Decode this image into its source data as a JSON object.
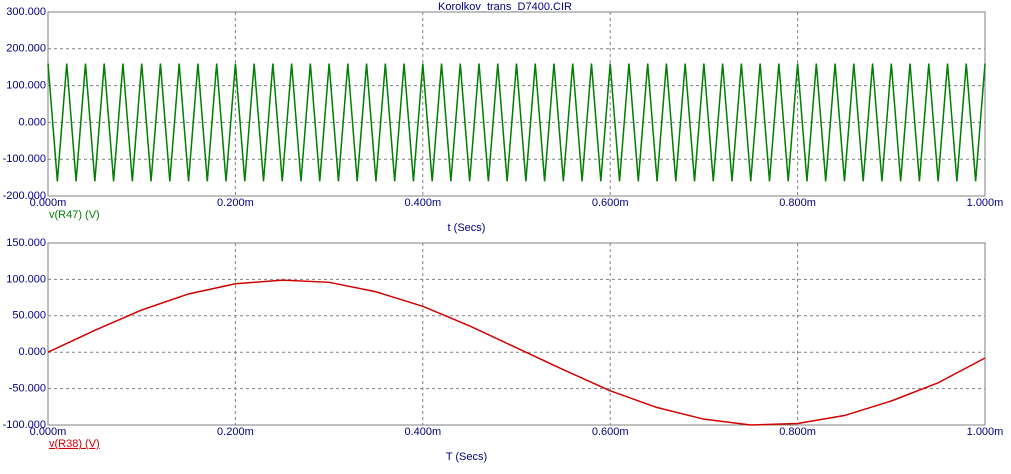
{
  "chart_data": [
    {
      "type": "line",
      "title": "Korolkov_trans_D7400.CIR",
      "xlabel": "t (Secs)",
      "xlim": [
        0,
        0.001
      ],
      "xticks": [
        {
          "value": 0,
          "label": "0.000m"
        },
        {
          "value": 0.0002,
          "label": "0.200m"
        },
        {
          "value": 0.0004,
          "label": "0.400m"
        },
        {
          "value": 0.0006,
          "label": "0.600m"
        },
        {
          "value": 0.0008,
          "label": "0.800m"
        },
        {
          "value": 0.001,
          "label": "1.000m"
        }
      ],
      "ylim": [
        -200,
        300
      ],
      "yticks": [
        {
          "value": -200,
          "label": "-200.000"
        },
        {
          "value": -100,
          "label": "-100.000"
        },
        {
          "value": 0,
          "label": "0.000"
        },
        {
          "value": 100,
          "label": "100.000"
        },
        {
          "value": 200,
          "label": "200.000"
        },
        {
          "value": 300,
          "label": "300.000"
        }
      ],
      "grid": true,
      "x": [
        0,
        1e-05,
        2e-05,
        3e-05,
        4e-05,
        5e-05,
        6e-05,
        7e-05,
        8e-05,
        9e-05,
        0.0001,
        0.00011,
        0.00012,
        0.00013,
        0.00014,
        0.00015,
        0.00016,
        0.00017,
        0.00018,
        0.00019,
        0.0002,
        0.00021,
        0.00022,
        0.00023,
        0.00024,
        0.00025,
        0.00026,
        0.00027,
        0.00028,
        0.00029,
        0.0003,
        0.00031,
        0.00032,
        0.00033,
        0.00034,
        0.00035,
        0.00036,
        0.00037,
        0.00038,
        0.00039,
        0.0004,
        0.00041,
        0.00042,
        0.00043,
        0.00044,
        0.00045,
        0.00046,
        0.00047,
        0.00048,
        0.00049,
        0.0005,
        0.00051,
        0.00052,
        0.00053,
        0.00054,
        0.00055,
        0.00056,
        0.00057,
        0.00058,
        0.00059,
        0.0006,
        0.00061,
        0.00062,
        0.00063,
        0.00064,
        0.00065,
        0.00066,
        0.00067,
        0.00068,
        0.00069,
        0.0007,
        0.00071,
        0.00072,
        0.00073,
        0.00074,
        0.00075,
        0.00076,
        0.00077,
        0.00078,
        0.00079,
        0.0008,
        0.00081,
        0.00082,
        0.00083,
        0.00084,
        0.00085,
        0.00086,
        0.00087,
        0.00088,
        0.00089,
        0.0009,
        0.00091,
        0.00092,
        0.00093,
        0.00094,
        0.00095,
        0.00096,
        0.00097,
        0.00098,
        0.00099,
        0.001
      ],
      "series": [
        {
          "name": "v(R47) (V)",
          "color": "#007f00",
          "values": [
            160,
            -160,
            160,
            -160,
            160,
            -160,
            160,
            -160,
            160,
            -160,
            160,
            -160,
            160,
            -160,
            160,
            -160,
            160,
            -160,
            160,
            -160,
            160,
            -160,
            160,
            -160,
            160,
            -160,
            160,
            -160,
            160,
            -160,
            160,
            -160,
            160,
            -160,
            160,
            -160,
            160,
            -160,
            160,
            -160,
            160,
            -160,
            160,
            -160,
            160,
            -160,
            160,
            -160,
            160,
            -160,
            160,
            -160,
            160,
            -160,
            160,
            -160,
            160,
            -160,
            160,
            -160,
            160,
            -160,
            160,
            -160,
            160,
            -160,
            160,
            -160,
            160,
            -160,
            160,
            -160,
            160,
            -160,
            160,
            -160,
            160,
            -160,
            160,
            -160,
            160,
            -160,
            160,
            -160,
            160,
            -160,
            160,
            -160,
            160,
            -160,
            160,
            -160,
            160,
            -160,
            160,
            -160,
            160,
            -160,
            160,
            -160,
            160
          ]
        }
      ]
    },
    {
      "type": "line",
      "xlabel": "T (Secs)",
      "xlim": [
        0,
        0.001
      ],
      "xticks": [
        {
          "value": 0,
          "label": "0.000m"
        },
        {
          "value": 0.0002,
          "label": "0.200m"
        },
        {
          "value": 0.0004,
          "label": "0.400m"
        },
        {
          "value": 0.0006,
          "label": "0.600m"
        },
        {
          "value": 0.0008,
          "label": "0.800m"
        },
        {
          "value": 0.001,
          "label": "1.000m"
        }
      ],
      "ylim": [
        -100,
        150
      ],
      "yticks": [
        {
          "value": -100,
          "label": "-100.000"
        },
        {
          "value": -50,
          "label": "-50.000"
        },
        {
          "value": 0,
          "label": "0.000"
        },
        {
          "value": 50,
          "label": "50.000"
        },
        {
          "value": 100,
          "label": "100.000"
        },
        {
          "value": 150,
          "label": "150.000"
        }
      ],
      "grid": true,
      "x": [
        0,
        5e-05,
        0.0001,
        0.00015,
        0.0002,
        0.00025,
        0.0003,
        0.00035,
        0.0004,
        0.00045,
        0.0005,
        0.00055,
        0.0006,
        0.00065,
        0.0007,
        0.00075,
        0.0008,
        0.00085,
        0.0009,
        0.00095,
        0.001
      ],
      "series": [
        {
          "name": "v(R38) (V)",
          "color": "#d00000",
          "values": [
            0,
            30,
            58,
            80,
            94,
            99,
            96,
            83,
            63,
            36,
            6,
            -24,
            -53,
            -76,
            -92,
            -100,
            -98,
            -87,
            -67,
            -42,
            -8
          ]
        }
      ]
    }
  ]
}
